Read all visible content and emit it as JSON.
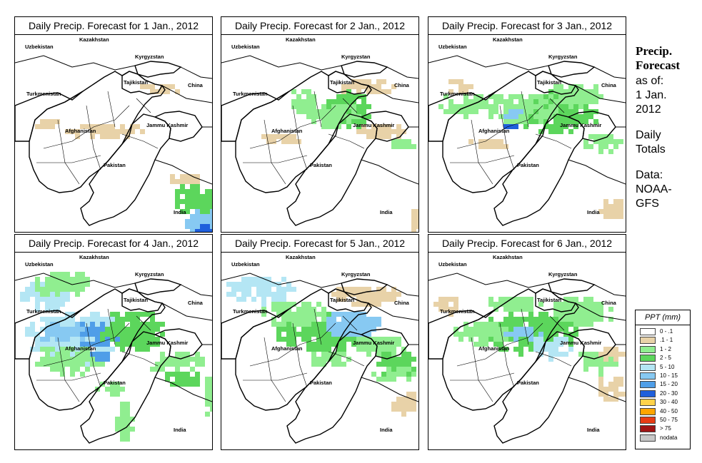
{
  "panels": [
    {
      "title": "Daily Precip. Forecast for  1 Jan., 2012",
      "day": 1
    },
    {
      "title": "Daily Precip. Forecast for  2 Jan., 2012",
      "day": 2
    },
    {
      "title": "Daily Precip. Forecast for  3 Jan., 2012",
      "day": 3
    },
    {
      "title": "Daily Precip. Forecast for  4 Jan., 2012",
      "day": 4
    },
    {
      "title": "Daily Precip. Forecast for  5 Jan., 2012",
      "day": 5
    },
    {
      "title": "Daily Precip. Forecast for  6 Jan., 2012",
      "day": 6
    }
  ],
  "map_labels": {
    "uzbekistan": "Uzbekistan",
    "kazakhstan": "Kazakhstan",
    "kyrgyzstan": "Kyrgyzstan",
    "tajikistan": "Tajikistan",
    "turkmenistan": "Turkmenistan",
    "china": "China",
    "afghanistan": "Afghanistan",
    "jammu": "Jammu Kashmir",
    "pakistan": "Pakistan",
    "india": "India"
  },
  "side": {
    "title_line1": "Precip.",
    "title_line2": "Forecast",
    "asof": "as of:",
    "date_line1": "1 Jan.",
    "date_line2": "2012",
    "totals_line1": "Daily",
    "totals_line2": "Totals",
    "data_line1": "Data:",
    "data_line2": "NOAA-",
    "data_line3": "GFS"
  },
  "legend": {
    "title": "PPT (mm)",
    "items": [
      {
        "label": "0 - .1",
        "color": "#ffffff"
      },
      {
        "label": ".1 - 1",
        "color": "#e8d2a8"
      },
      {
        "label": "1 - 2",
        "color": "#90ee90"
      },
      {
        "label": "2 - 5",
        "color": "#5cd65c"
      },
      {
        "label": "5 - 10",
        "color": "#b4e6f4"
      },
      {
        "label": "10 - 15",
        "color": "#87c9f2"
      },
      {
        "label": "15 - 20",
        "color": "#4f9ee8"
      },
      {
        "label": "20 - 30",
        "color": "#1f5fdc"
      },
      {
        "label": "30 - 40",
        "color": "#ffd24a"
      },
      {
        "label": "40 - 50",
        "color": "#ffa500"
      },
      {
        "label": "50 - 75",
        "color": "#e83c14"
      },
      {
        "label": "> 75",
        "color": "#a01414"
      },
      {
        "label": "nodata",
        "color": "#c8c8c8"
      }
    ]
  }
}
